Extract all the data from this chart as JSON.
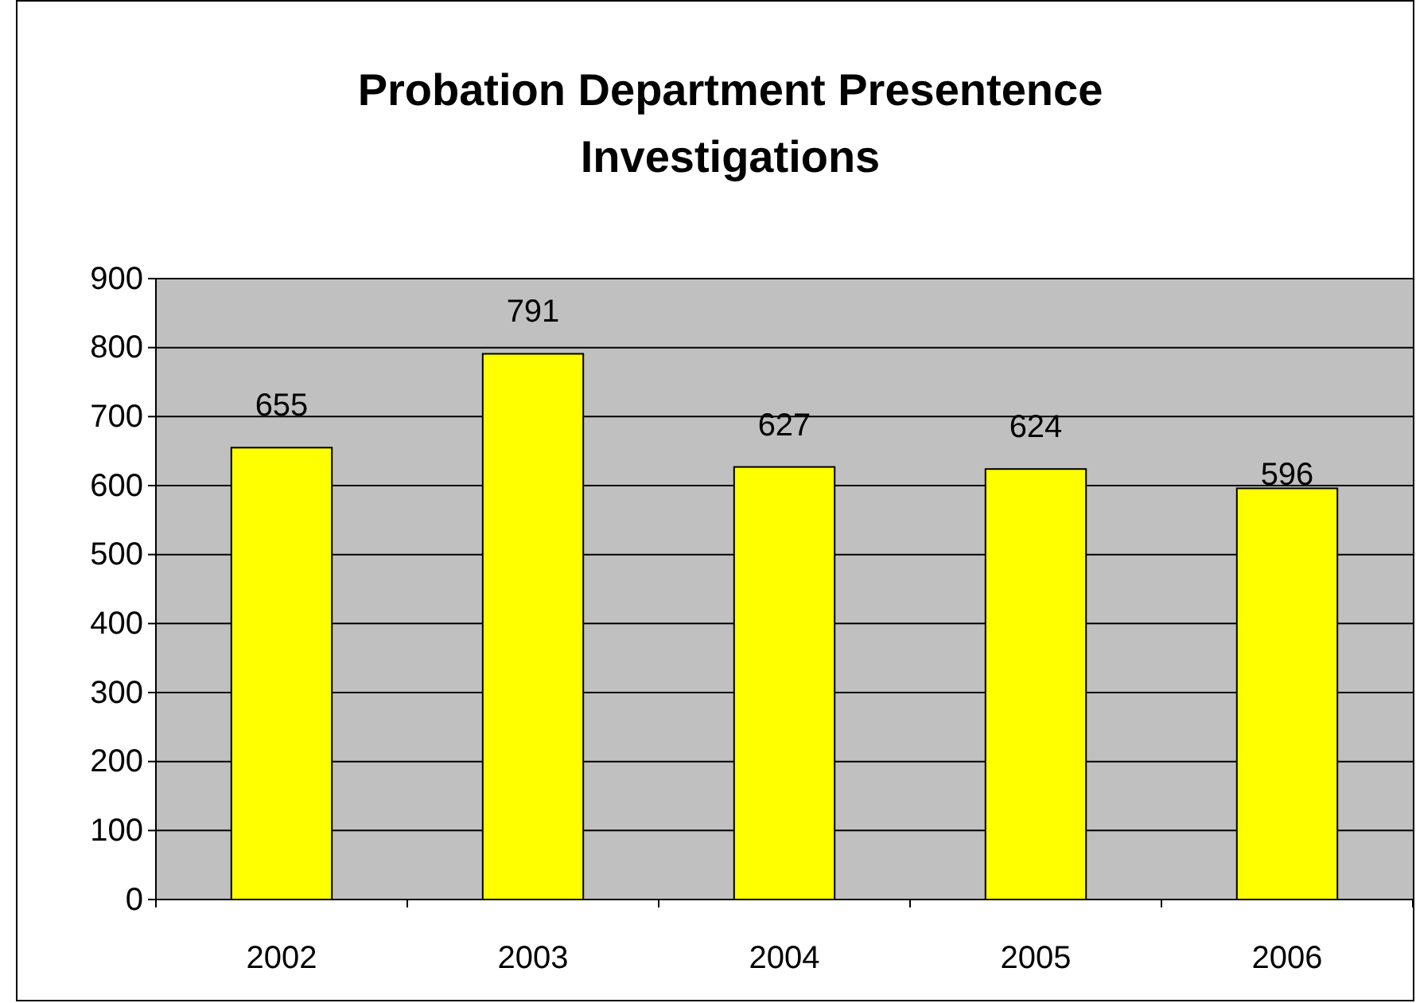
{
  "chart_data": {
    "type": "bar",
    "title": "Probation Department Presentence Investigations",
    "categories": [
      "2002",
      "2003",
      "2004",
      "2005",
      "2006"
    ],
    "values": [
      655,
      791,
      627,
      624,
      596
    ],
    "color": "#ffff00",
    "ylim": [
      0,
      900
    ],
    "yticks": [
      0,
      100,
      200,
      300,
      400,
      500,
      600,
      700,
      800,
      900
    ],
    "grid": "y",
    "data_labels": true
  }
}
